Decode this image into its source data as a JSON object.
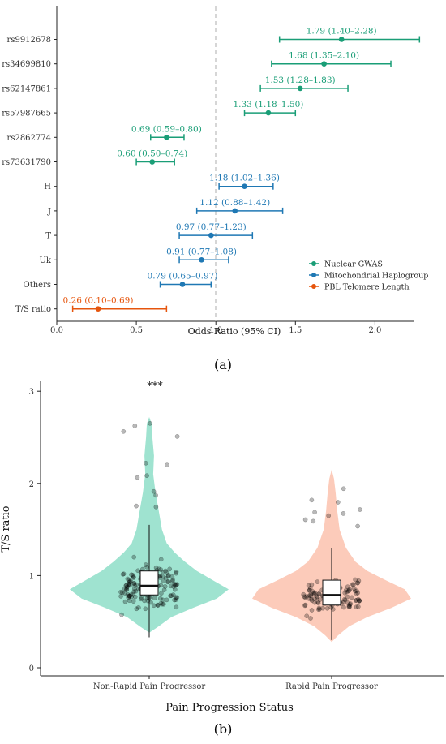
{
  "panel_labels": {
    "a": "(a)",
    "b": "(b)"
  },
  "chart_data": [
    {
      "type": "forest",
      "xlabel": "Odds Ratio (95% CI)",
      "ylabel": "",
      "xlim": [
        0.0,
        2.4
      ],
      "xticks": [
        "0.0",
        "0.5",
        "1.0",
        "1.5",
        "2.0"
      ],
      "reference_line": 1.0,
      "legend": {
        "placement": "right",
        "entries": [
          {
            "name": "Nuclear GWAS",
            "color": "#1a9e77"
          },
          {
            "name": "Mitochondrial Haplogroup",
            "color": "#1f78b4"
          },
          {
            "name": "PBL Telomere Length",
            "color": "#e6550d"
          }
        ]
      },
      "rows": [
        {
          "label": "rs9912678",
          "group": 0,
          "or": 1.79,
          "lo": 1.4,
          "hi": 2.28,
          "text": "1.79 (1.40–2.28)"
        },
        {
          "label": "rs34699810",
          "group": 0,
          "or": 1.68,
          "lo": 1.35,
          "hi": 2.1,
          "text": "1.68 (1.35–2.10)"
        },
        {
          "label": "rs62147861",
          "group": 0,
          "or": 1.53,
          "lo": 1.28,
          "hi": 1.83,
          "text": "1.53 (1.28–1.83)"
        },
        {
          "label": "rs57987665",
          "group": 0,
          "or": 1.33,
          "lo": 1.18,
          "hi": 1.5,
          "text": "1.33 (1.18–1.50)"
        },
        {
          "label": "rs2862774",
          "group": 0,
          "or": 0.69,
          "lo": 0.59,
          "hi": 0.8,
          "text": "0.69 (0.59–0.80)"
        },
        {
          "label": "rs73631790",
          "group": 0,
          "or": 0.6,
          "lo": 0.5,
          "hi": 0.74,
          "text": "0.60 (0.50–0.74)"
        },
        {
          "label": "H",
          "group": 1,
          "or": 1.18,
          "lo": 1.02,
          "hi": 1.36,
          "text": "1.18 (1.02–1.36)"
        },
        {
          "label": "J",
          "group": 1,
          "or": 1.12,
          "lo": 0.88,
          "hi": 1.42,
          "text": "1.12 (0.88–1.42)"
        },
        {
          "label": "T",
          "group": 1,
          "or": 0.97,
          "lo": 0.77,
          "hi": 1.23,
          "text": "0.97 (0.77–1.23)"
        },
        {
          "label": "Uk",
          "group": 1,
          "or": 0.91,
          "lo": 0.77,
          "hi": 1.08,
          "text": "0.91 (0.77–1.08)"
        },
        {
          "label": "Others",
          "group": 1,
          "or": 0.79,
          "lo": 0.65,
          "hi": 0.97,
          "text": "0.79 (0.65–0.97)"
        },
        {
          "label": "T/S ratio",
          "group": 2,
          "or": 0.26,
          "lo": 0.1,
          "hi": 0.69,
          "text": "0.26 (0.10–0.69)"
        }
      ]
    },
    {
      "type": "violin",
      "xlabel": "Pain Progression Status",
      "ylabel": "T/S ratio",
      "ylim": [
        0,
        3.1
      ],
      "yticks": [
        "0",
        "1",
        "2",
        "3"
      ],
      "annotation": "***",
      "groups": [
        {
          "name": "Non-Rapid Pain Progressor",
          "color": "#7fd9c0",
          "box": {
            "q1": 0.79,
            "median": 0.89,
            "q3": 1.05,
            "whisker_lo": 0.33,
            "whisker_hi": 1.55
          },
          "density": [
            [
              0.38,
              0.0
            ],
            [
              0.45,
              0.12
            ],
            [
              0.55,
              0.28
            ],
            [
              0.65,
              0.55
            ],
            [
              0.75,
              0.85
            ],
            [
              0.85,
              1.0
            ],
            [
              0.95,
              0.8
            ],
            [
              1.05,
              0.6
            ],
            [
              1.15,
              0.45
            ],
            [
              1.25,
              0.32
            ],
            [
              1.35,
              0.22
            ],
            [
              1.5,
              0.16
            ],
            [
              1.7,
              0.12
            ],
            [
              1.9,
              0.08
            ],
            [
              2.1,
              0.05
            ],
            [
              2.3,
              0.06
            ],
            [
              2.5,
              0.04
            ],
            [
              2.65,
              0.03
            ],
            [
              2.72,
              0.0
            ]
          ]
        },
        {
          "name": "Rapid Pain Progressor",
          "color": "#fbb9a3",
          "box": {
            "q1": 0.68,
            "median": 0.79,
            "q3": 0.95,
            "whisker_lo": 0.3,
            "whisker_hi": 1.3
          },
          "density": [
            [
              0.28,
              0.0
            ],
            [
              0.35,
              0.08
            ],
            [
              0.45,
              0.22
            ],
            [
              0.55,
              0.45
            ],
            [
              0.65,
              0.75
            ],
            [
              0.75,
              1.0
            ],
            [
              0.85,
              0.92
            ],
            [
              0.95,
              0.68
            ],
            [
              1.05,
              0.45
            ],
            [
              1.15,
              0.3
            ],
            [
              1.3,
              0.18
            ],
            [
              1.5,
              0.1
            ],
            [
              1.7,
              0.07
            ],
            [
              1.9,
              0.05
            ],
            [
              2.05,
              0.03
            ],
            [
              2.15,
              0.0
            ]
          ]
        }
      ]
    }
  ]
}
